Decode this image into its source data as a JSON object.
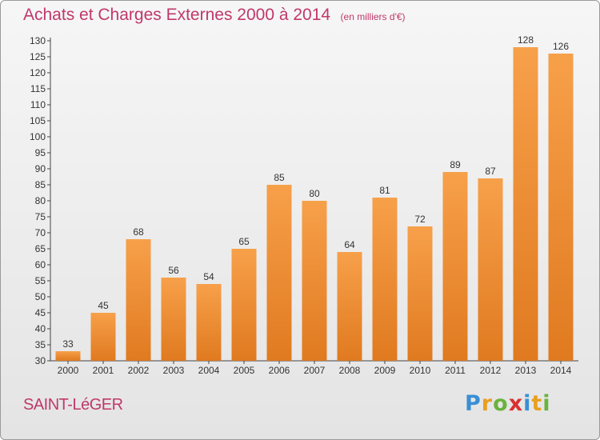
{
  "chart_data": {
    "type": "bar",
    "title": "Achats et Charges Externes 2000 à 2014",
    "unit": "(en milliers d'€)",
    "categories": [
      "2000",
      "2001",
      "2002",
      "2003",
      "2004",
      "2005",
      "2006",
      "2007",
      "2008",
      "2009",
      "2010",
      "2011",
      "2012",
      "2013",
      "2014"
    ],
    "values": [
      33,
      45,
      68,
      56,
      54,
      65,
      85,
      80,
      64,
      81,
      72,
      89,
      87,
      128,
      126
    ],
    "ylim": [
      30,
      130
    ],
    "yticks": [
      30,
      35,
      40,
      45,
      50,
      55,
      60,
      65,
      70,
      75,
      80,
      85,
      90,
      95,
      100,
      105,
      110,
      115,
      120,
      125,
      130
    ],
    "grid": false,
    "colors": {
      "bar_light": "#f7a04a",
      "bar_dark": "#e07a20",
      "title": "#c0386a"
    }
  },
  "footer": {
    "commune": "SAINT-LéGER",
    "brand_letters": [
      {
        "ch": "P",
        "color": "#3a8fd4"
      },
      {
        "ch": "r",
        "color": "#e8a020"
      },
      {
        "ch": "o",
        "color": "#6ab33c"
      },
      {
        "ch": "x",
        "color": "#d93030"
      },
      {
        "ch": "i",
        "color": "#3a8fd4"
      },
      {
        "ch": "t",
        "color": "#e8a020"
      },
      {
        "ch": "i",
        "color": "#6ab33c"
      }
    ]
  }
}
